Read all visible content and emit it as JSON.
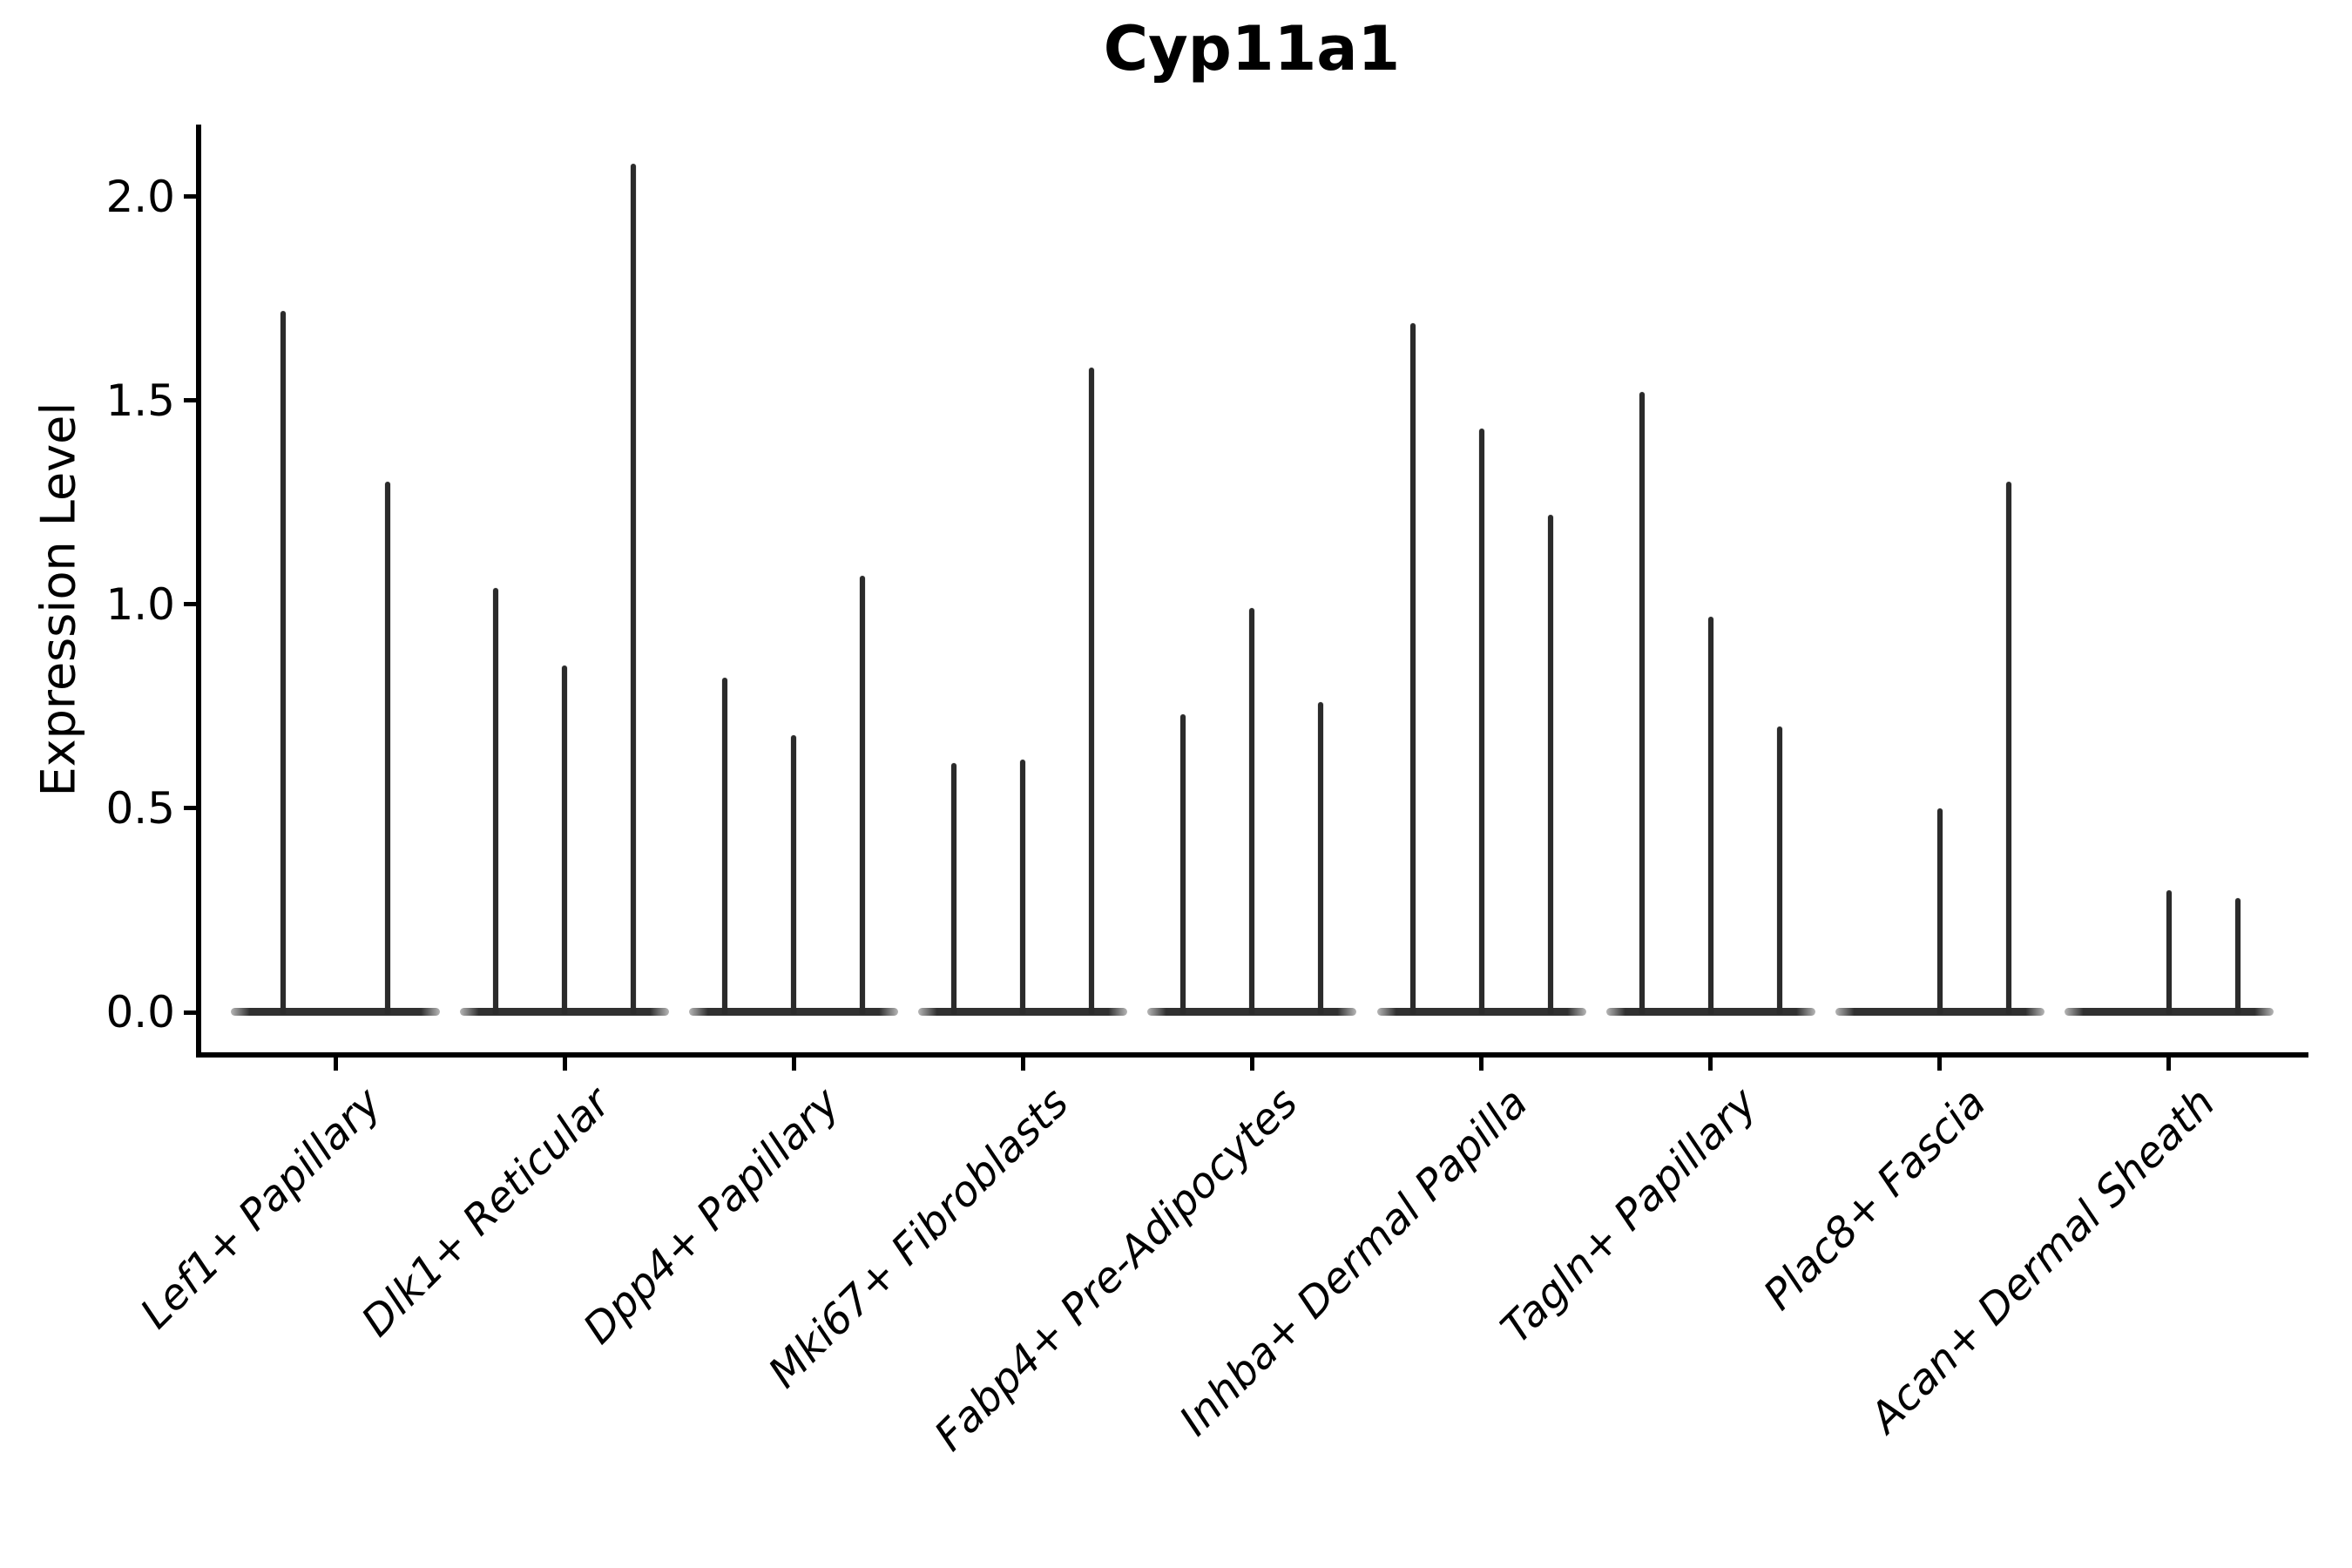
{
  "chart_data": {
    "type": "violin",
    "title": "Cyp11a1",
    "ylabel": "Expression Level",
    "xlabel": "",
    "grid": false,
    "legend": "none",
    "ylim": [
      -0.1,
      2.18
    ],
    "axis_color": "#000000",
    "violin_color": "#2b2b2b",
    "yticks": [
      {
        "label": "0.0",
        "value": 0.0
      },
      {
        "label": "0.5",
        "value": 0.5
      },
      {
        "label": "1.0",
        "value": 1.0
      },
      {
        "label": "1.5",
        "value": 1.5
      },
      {
        "label": "2.0",
        "value": 2.0
      }
    ],
    "categories": [
      {
        "label": "Lef1+ Papillary",
        "violins": [
          {
            "offset": -60,
            "peak": 1.72
          },
          {
            "offset": 60,
            "peak": 1.3
          }
        ]
      },
      {
        "label": "Dlk1+ Reticular",
        "violins": [
          {
            "offset": -79,
            "peak": 1.04
          },
          {
            "offset": 0,
            "peak": 0.85
          },
          {
            "offset": 79,
            "peak": 2.08
          }
        ]
      },
      {
        "label": "Dpp4+ Papillary",
        "violins": [
          {
            "offset": -79,
            "peak": 0.82
          },
          {
            "offset": 0,
            "peak": 0.68
          },
          {
            "offset": 79,
            "peak": 1.07
          }
        ]
      },
      {
        "label": "Mki67+ Fibroblasts",
        "violins": [
          {
            "offset": -79,
            "peak": 0.61
          },
          {
            "offset": 0,
            "peak": 0.62
          },
          {
            "offset": 79,
            "peak": 1.58
          }
        ]
      },
      {
        "label": "Fabp4+ Pre-Adipocytes",
        "violins": [
          {
            "offset": -79,
            "peak": 0.73
          },
          {
            "offset": 0,
            "peak": 0.99
          },
          {
            "offset": 79,
            "peak": 0.76
          }
        ]
      },
      {
        "label": "Inhba+ Dermal Papilla",
        "violins": [
          {
            "offset": -79,
            "peak": 1.69
          },
          {
            "offset": 0,
            "peak": 1.43
          },
          {
            "offset": 79,
            "peak": 1.22
          }
        ]
      },
      {
        "label": "Tagln+ Papillary",
        "violins": [
          {
            "offset": -79,
            "peak": 1.52
          },
          {
            "offset": 0,
            "peak": 0.97
          },
          {
            "offset": 79,
            "peak": 0.7
          }
        ]
      },
      {
        "label": "Plac8+ Fascia",
        "violins": [
          {
            "offset": 0,
            "peak": 0.5
          },
          {
            "offset": 79,
            "peak": 1.3
          }
        ]
      },
      {
        "label": "Acan+ Dermal Sheath",
        "violins": [
          {
            "offset": 0,
            "peak": 0.3
          },
          {
            "offset": 79,
            "peak": 0.28
          }
        ]
      }
    ]
  }
}
